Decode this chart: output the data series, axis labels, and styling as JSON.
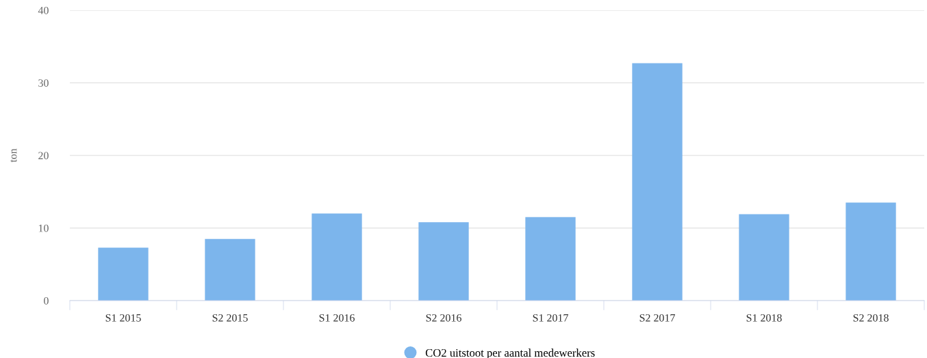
{
  "chart_data": {
    "type": "bar",
    "ylabel": "ton",
    "categories": [
      "S1 2015",
      "S2 2015",
      "S1 2016",
      "S2 2016",
      "S1 2017",
      "S2 2017",
      "S1 2018",
      "S2 2018"
    ],
    "series": [
      {
        "name": "CO2 uitstoot per aantal medewerkers",
        "color": "#7cb5ec",
        "values": [
          7.3,
          8.5,
          12.0,
          10.8,
          11.5,
          32.7,
          11.9,
          13.5
        ]
      }
    ],
    "ylim": [
      0,
      40
    ],
    "yticks": [
      0,
      10,
      20,
      30,
      40
    ],
    "grid": "y",
    "legend": "bottom"
  }
}
